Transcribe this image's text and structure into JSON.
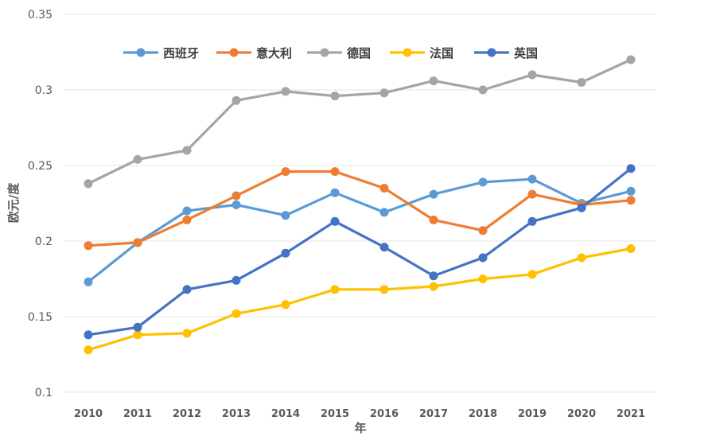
{
  "chart_data": {
    "type": "line",
    "title": "",
    "xlabel": "年",
    "ylabel": "欧元/度",
    "ylim": [
      0.1,
      0.35
    ],
    "yticks": [
      "0.1",
      "0.15",
      "0.2",
      "0.25",
      "0.3",
      "0.35"
    ],
    "grid": true,
    "legend_position": "top",
    "categories": [
      "2010",
      "2011",
      "2012",
      "2013",
      "2014",
      "2015",
      "2016",
      "2017",
      "2018",
      "2019",
      "2020",
      "2021"
    ],
    "series": [
      {
        "name": "西班牙",
        "color": "#5b9bd5",
        "values": [
          0.173,
          0.199,
          0.22,
          0.224,
          0.217,
          0.232,
          0.219,
          0.231,
          0.239,
          0.241,
          0.225,
          0.233
        ]
      },
      {
        "name": "意大利",
        "color": "#ed7d31",
        "values": [
          0.197,
          0.199,
          0.214,
          0.23,
          0.246,
          0.246,
          0.235,
          0.214,
          0.207,
          0.231,
          0.224,
          0.227
        ]
      },
      {
        "name": "德国",
        "color": "#a5a5a5",
        "values": [
          0.238,
          0.254,
          0.26,
          0.293,
          0.299,
          0.296,
          0.298,
          0.306,
          0.3,
          0.31,
          0.305,
          0.32
        ]
      },
      {
        "name": "法国",
        "color": "#ffc000",
        "values": [
          0.128,
          0.138,
          0.139,
          0.152,
          0.158,
          0.168,
          0.168,
          0.17,
          0.175,
          0.178,
          0.189,
          0.195
        ]
      },
      {
        "name": "英国",
        "color": "#4472c4",
        "values": [
          0.138,
          0.143,
          0.168,
          0.174,
          0.192,
          0.213,
          0.196,
          0.177,
          0.189,
          0.213,
          0.222,
          0.248
        ]
      }
    ]
  }
}
